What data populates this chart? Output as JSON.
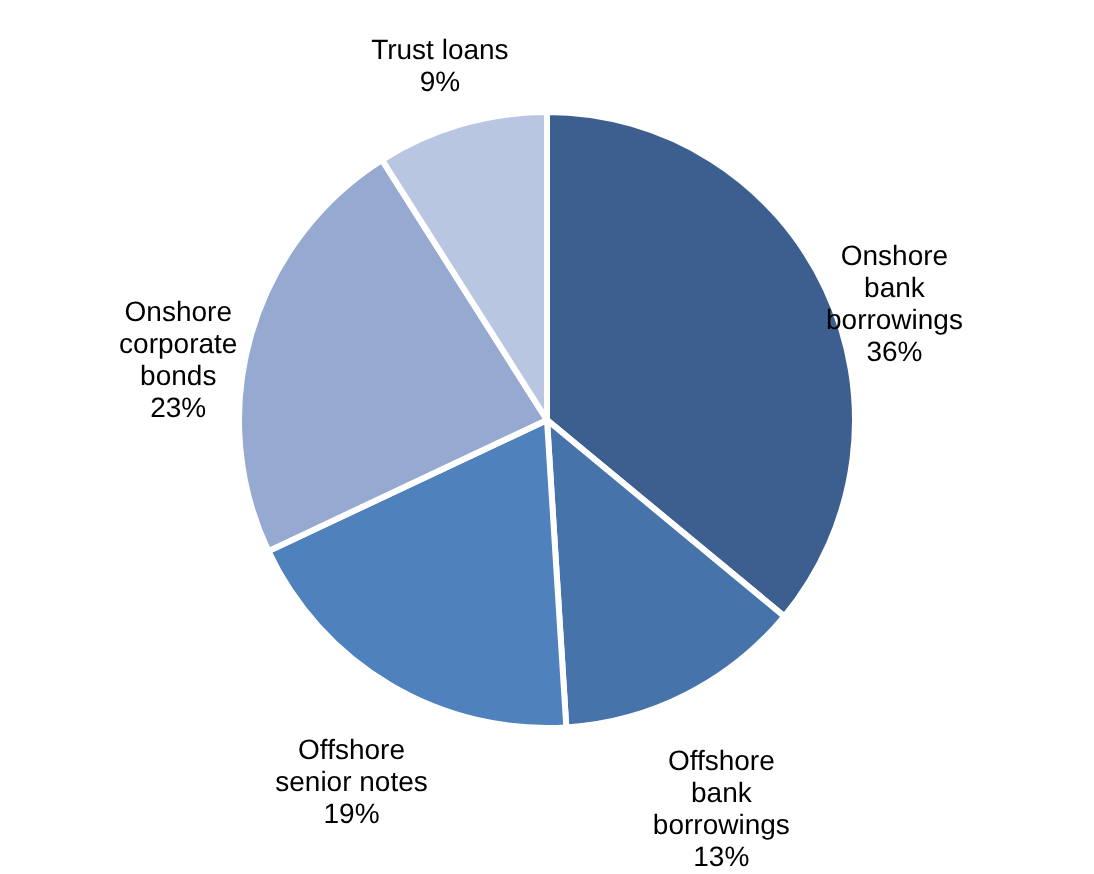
{
  "chart_data": {
    "type": "pie",
    "categories": [
      "Onshore bank borrowings",
      "Offshore bank borrowings",
      "Offshore senior notes",
      "Onshore corporate bonds",
      "Trust loans"
    ],
    "values": [
      36,
      13,
      19,
      23,
      9
    ],
    "colors": [
      "#3c5f8f",
      "#4673a9",
      "#4f81bd",
      "#95a9d1",
      "#b9c6e1"
    ],
    "value_labels": [
      "36%",
      "13%",
      "19%",
      "23%",
      "9%"
    ]
  }
}
